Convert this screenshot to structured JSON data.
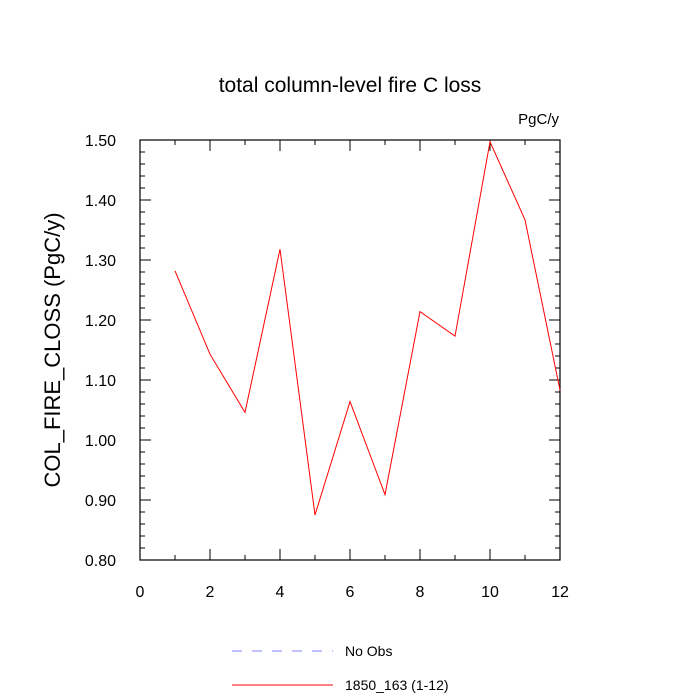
{
  "chart_data": {
    "type": "line",
    "title": "total column-level fire C loss",
    "units_label": "PgC/y",
    "xlabel": "",
    "ylabel": "COL_FIRE_CLOSS  (PgC/y)",
    "xlim": [
      0,
      12
    ],
    "ylim": [
      0.8,
      1.5
    ],
    "x_ticks": [
      "0",
      "2",
      "4",
      "6",
      "8",
      "10",
      "12"
    ],
    "y_ticks": [
      "0.80",
      "0.90",
      "1.00",
      "1.10",
      "1.20",
      "1.30",
      "1.40",
      "1.50"
    ],
    "grid": false,
    "legend_placement": "bottom-center",
    "series": [
      {
        "name": "No Obs",
        "color": "#8080ff",
        "style": "dashed",
        "x": [],
        "y": []
      },
      {
        "name": "1850_163 (1-12)",
        "color": "#ff0000",
        "style": "solid",
        "x": [
          1,
          2,
          3,
          4,
          5,
          6,
          7,
          8,
          9,
          10,
          11,
          12
        ],
        "y": [
          1.282,
          1.143,
          1.046,
          1.318,
          0.875,
          1.064,
          0.909,
          1.214,
          1.173,
          1.497,
          1.367,
          1.083
        ]
      }
    ]
  }
}
